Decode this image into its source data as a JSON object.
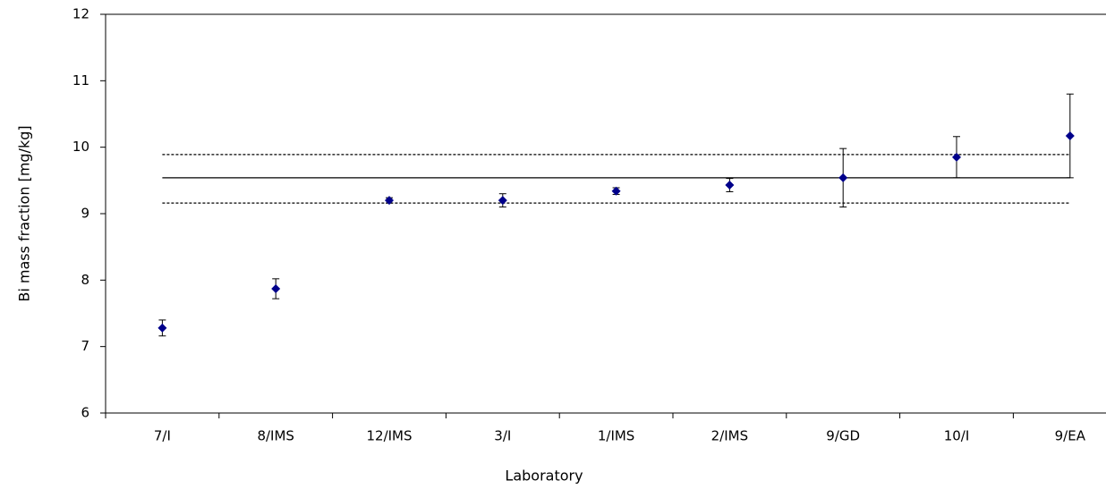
{
  "chart_data": {
    "type": "errorbar",
    "x_label": "Laboratory",
    "y_label": "Bi mass fraction [mg/kg]",
    "categories": [
      "7/I",
      "8/IMS",
      "12/IMS",
      "3/I",
      "1/IMS",
      "2/IMS",
      "9/GD",
      "10/I",
      "9/EA"
    ],
    "values": [
      7.28,
      7.87,
      9.2,
      9.2,
      9.34,
      9.43,
      9.54,
      9.85,
      10.17
    ],
    "errors": [
      0.12,
      0.15,
      0.04,
      0.1,
      0.05,
      0.1,
      0.44,
      0.31,
      0.63
    ],
    "color": "#00008b",
    "reference_lines": [
      {
        "value": 9.54,
        "style": "solid"
      },
      {
        "value": 9.89,
        "style": "dashed"
      },
      {
        "value": 9.16,
        "style": "dashed"
      }
    ],
    "ylim": [
      6,
      12
    ],
    "yticks": [
      6,
      7,
      8,
      9,
      10,
      11,
      12
    ],
    "grid": false
  }
}
